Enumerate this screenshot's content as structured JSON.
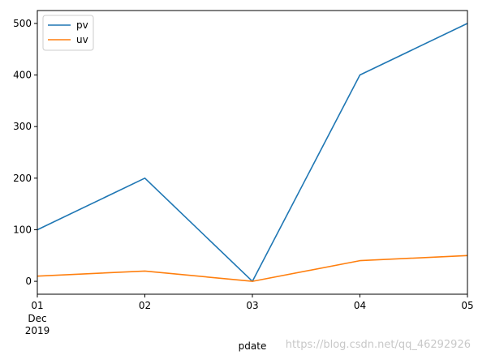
{
  "chart_data": {
    "type": "line",
    "x": [
      "2019-12-01",
      "2019-12-02",
      "2019-12-03",
      "2019-12-04",
      "2019-12-05"
    ],
    "x_tick_labels": [
      "01",
      "02",
      "03",
      "04",
      "05"
    ],
    "x_tick_sublabels": [
      "Dec",
      "2019"
    ],
    "series": [
      {
        "name": "pv",
        "values": [
          100,
          200,
          0,
          400,
          500
        ],
        "color": "#1f77b4"
      },
      {
        "name": "uv",
        "values": [
          10,
          20,
          0,
          40,
          50
        ],
        "color": "#ff7f0e"
      }
    ],
    "xlabel": "pdate",
    "ylabel": "",
    "ylim": [
      -25,
      525
    ],
    "yticks": [
      0,
      100,
      200,
      300,
      400,
      500
    ],
    "grid": false,
    "legend_position": "top-left"
  },
  "watermark": "https://blog.csdn.net/qq_46292926"
}
